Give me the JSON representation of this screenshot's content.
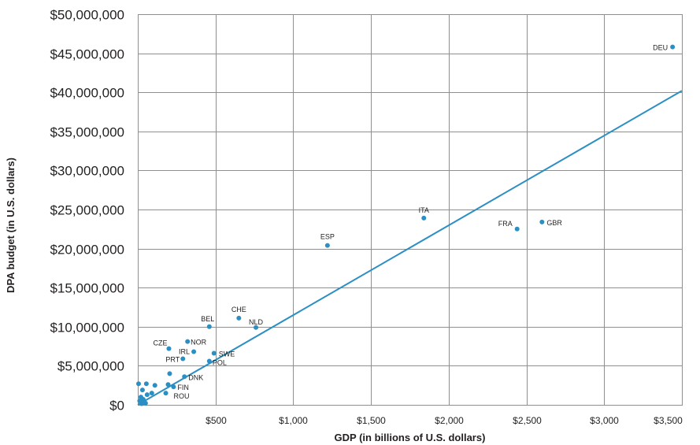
{
  "chart_data": {
    "type": "scatter",
    "title": "",
    "xlabel": "GDP (in billions of U.S. dollars)",
    "ylabel": "DPA budget (in U.S. dollars)",
    "xlim": [
      0,
      3500
    ],
    "ylim": [
      0,
      50000000
    ],
    "x_ticks": [
      500,
      1000,
      1500,
      2000,
      2500,
      3000,
      3500
    ],
    "x_tick_labels": [
      "$500",
      "$1,000",
      "$1,500",
      "$2,000",
      "$2,500",
      "$3,000",
      "$3,500"
    ],
    "y_ticks": [
      0,
      5000000,
      10000000,
      15000000,
      20000000,
      25000000,
      30000000,
      35000000,
      40000000,
      45000000,
      50000000
    ],
    "y_tick_labels": [
      "$0",
      "$5,000,000",
      "$10,000,000",
      "$15,000,000",
      "$20,000,000",
      "$25,000,000",
      "$30,000,000",
      "$35,000,000",
      "$40,000,000",
      "$45,000,000",
      "$50,000,000"
    ],
    "grid": true,
    "trend_line": {
      "x": [
        0,
        3500
      ],
      "y": [
        0,
        40200000
      ]
    },
    "points": [
      {
        "label": "DEU",
        "x": 3440,
        "y": 45800000
      },
      {
        "label": "ITA",
        "x": 1840,
        "y": 23900000
      },
      {
        "label": "FRA",
        "x": 2440,
        "y": 22500000
      },
      {
        "label": "GBR",
        "x": 2600,
        "y": 23400000
      },
      {
        "label": "ESP",
        "x": 1220,
        "y": 20400000
      },
      {
        "label": "CHE",
        "x": 650,
        "y": 11100000
      },
      {
        "label": "NLD",
        "x": 760,
        "y": 9900000
      },
      {
        "label": "BEL",
        "x": 460,
        "y": 10000000
      },
      {
        "label": "CZE",
        "x": 200,
        "y": 7200000
      },
      {
        "label": "NOR",
        "x": 320,
        "y": 8100000
      },
      {
        "label": "IRL",
        "x": 360,
        "y": 6800000
      },
      {
        "label": "PRT",
        "x": 290,
        "y": 5900000
      },
      {
        "label": "SWE",
        "x": 490,
        "y": 6600000
      },
      {
        "label": "POL",
        "x": 460,
        "y": 5600000
      },
      {
        "label": "DNK",
        "x": 300,
        "y": 3600000
      },
      {
        "label": "FIN",
        "x": 230,
        "y": 2300000
      },
      {
        "label": "ROU",
        "x": 180,
        "y": 1500000
      },
      {
        "label": "",
        "x": 5,
        "y": 2700000
      },
      {
        "label": "",
        "x": 55,
        "y": 2700000
      },
      {
        "label": "",
        "x": 110,
        "y": 2500000
      },
      {
        "label": "",
        "x": 195,
        "y": 2600000
      },
      {
        "label": "",
        "x": 205,
        "y": 4000000
      },
      {
        "label": "",
        "x": 30,
        "y": 1900000
      },
      {
        "label": "",
        "x": 60,
        "y": 1300000
      },
      {
        "label": "",
        "x": 90,
        "y": 1500000
      },
      {
        "label": "",
        "x": 20,
        "y": 1000000
      },
      {
        "label": "",
        "x": 35,
        "y": 700000
      },
      {
        "label": "",
        "x": 12,
        "y": 500000
      },
      {
        "label": "",
        "x": 45,
        "y": 300000
      },
      {
        "label": "",
        "x": 25,
        "y": 150000
      },
      {
        "label": "",
        "x": 50,
        "y": 200000
      }
    ]
  }
}
